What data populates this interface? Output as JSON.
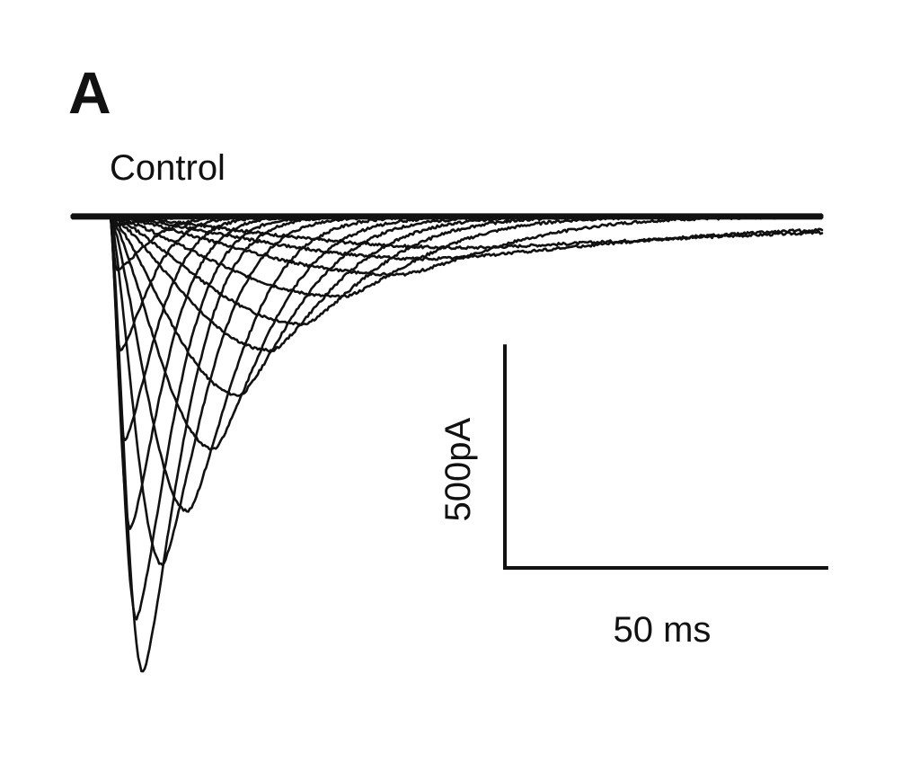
{
  "figure": {
    "panel_letter": "A",
    "condition": "Control"
  },
  "chart_data": {
    "type": "line",
    "title": "",
    "xlabel": "",
    "ylabel": "",
    "x_units": "ms",
    "y_units": "pA",
    "xlim": [
      -6,
      110
    ],
    "ylim": [
      -1100,
      50
    ],
    "grid": false,
    "legend": "none",
    "scale_bar": {
      "x_value": 50,
      "x_label": "50 ms",
      "y_value": 500,
      "y_label": "500pA"
    },
    "color": "#111111",
    "series": [
      {
        "onset": 0,
        "peak_time": 0.4,
        "peak": -20,
        "rise": 0.6,
        "decay": 6
      },
      {
        "onset": 0,
        "peak_time": 1.0,
        "peak": -120,
        "rise": 0.9,
        "decay": 6
      },
      {
        "onset": 0,
        "peak_time": 1.5,
        "peak": -300,
        "rise": 1.1,
        "decay": 6
      },
      {
        "onset": 0,
        "peak_time": 2.2,
        "peak": -500,
        "rise": 1.3,
        "decay": 6.5
      },
      {
        "onset": 0,
        "peak_time": 3.0,
        "peak": -700,
        "rise": 1.5,
        "decay": 7
      },
      {
        "onset": 0,
        "peak_time": 4.0,
        "peak": -900,
        "rise": 1.9,
        "decay": 7.5
      },
      {
        "onset": 0,
        "peak_time": 5.0,
        "peak": -1020,
        "rise": 2.3,
        "decay": 8
      },
      {
        "onset": 0,
        "peak_time": 8.0,
        "peak": -780,
        "rise": 3.2,
        "decay": 9
      },
      {
        "onset": 0,
        "peak_time": 12.0,
        "peak": -660,
        "rise": 4.5,
        "decay": 10
      },
      {
        "onset": 0,
        "peak_time": 16.0,
        "peak": -520,
        "rise": 5.5,
        "decay": 11
      },
      {
        "onset": 0,
        "peak_time": 20.0,
        "peak": -400,
        "rise": 6.5,
        "decay": 12
      },
      {
        "onset": 0,
        "peak_time": 25.0,
        "peak": -300,
        "rise": 8,
        "decay": 13
      },
      {
        "onset": 0,
        "peak_time": 30.0,
        "peak": -240,
        "rise": 9,
        "decay": 14
      },
      {
        "onset": 0,
        "peak_time": 36.0,
        "peak": -180,
        "rise": 10,
        "decay": 16
      },
      {
        "onset": 0,
        "peak_time": 45.0,
        "peak": -130,
        "rise": 12,
        "decay": 20
      },
      {
        "onset": 0,
        "peak_time": 50.0,
        "peak": -95,
        "rise": 15,
        "decay": 40,
        "tail": -20
      },
      {
        "onset": 0,
        "peak_time": 55.0,
        "peak": -70,
        "rise": 18,
        "decay": 50,
        "tail": -25
      }
    ]
  }
}
